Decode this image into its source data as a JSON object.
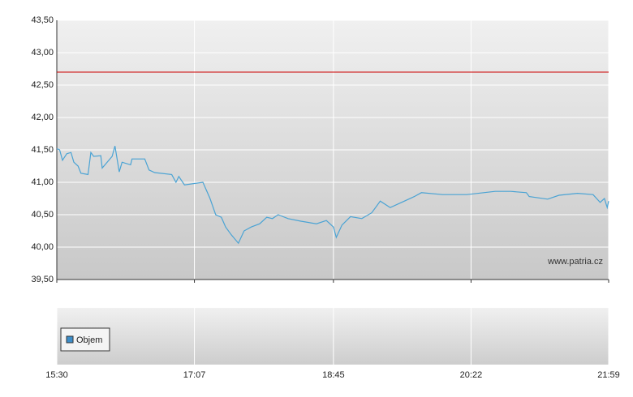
{
  "chart_data": {
    "type": "line",
    "x": [
      "15:30",
      "15:32",
      "15:34",
      "15:37",
      "15:40",
      "15:42",
      "15:45",
      "15:47",
      "15:52",
      "15:54",
      "15:56",
      "16:01",
      "16:02",
      "16:09",
      "16:11",
      "16:14",
      "16:16",
      "16:22",
      "16:23",
      "16:32",
      "16:35",
      "16:39",
      "16:51",
      "16:54",
      "16:56",
      "17:00",
      "17:13",
      "17:18",
      "17:22",
      "17:26",
      "17:29",
      "17:33",
      "17:38",
      "17:42",
      "17:47",
      "17:53",
      "17:58",
      "18:02",
      "18:06",
      "18:13",
      "18:22",
      "18:33",
      "18:40",
      "18:45",
      "18:47",
      "18:51",
      "18:57",
      "19:05",
      "19:12",
      "19:18",
      "19:25",
      "19:33",
      "19:42",
      "19:47",
      "20:02",
      "20:19",
      "20:39",
      "20:50",
      "21:01",
      "21:03",
      "21:16",
      "21:24",
      "21:37",
      "21:48",
      "21:53",
      "21:56",
      "21:58",
      "21:59"
    ],
    "series": [
      {
        "color": "#4aa3d4",
        "values": [
          41.52,
          41.5,
          41.34,
          41.44,
          41.46,
          41.31,
          41.25,
          41.14,
          41.12,
          41.46,
          41.4,
          41.41,
          41.22,
          41.4,
          41.56,
          41.16,
          41.31,
          41.27,
          41.36,
          41.36,
          41.19,
          41.15,
          41.12,
          41.0,
          41.09,
          40.96,
          41.0,
          40.75,
          40.5,
          40.46,
          40.31,
          40.19,
          40.06,
          40.25,
          40.31,
          40.36,
          40.46,
          40.44,
          40.5,
          40.44,
          40.4,
          40.36,
          40.41,
          40.31,
          40.15,
          40.34,
          40.47,
          40.44,
          40.53,
          40.71,
          40.61,
          40.69,
          40.78,
          40.84,
          40.81,
          40.81,
          40.86,
          40.86,
          40.84,
          40.78,
          40.74,
          40.8,
          40.83,
          40.81,
          40.69,
          40.75,
          40.61,
          40.71
        ]
      }
    ],
    "xlim": [
      "15:30",
      "21:59"
    ],
    "xticks": [
      "15:30",
      "17:07",
      "18:45",
      "20:22",
      "21:59"
    ],
    "ylim": [
      39.5,
      43.5
    ],
    "yticks": [
      {
        "value": 39.5,
        "label": "39,50"
      },
      {
        "value": 40,
        "label": "40,00"
      },
      {
        "value": 40.5,
        "label": "40,50"
      },
      {
        "value": 41,
        "label": "41,00"
      },
      {
        "value": 41.5,
        "label": "41,50"
      },
      {
        "value": 42,
        "label": "42,00"
      },
      {
        "value": 42.5,
        "label": "42,50"
      },
      {
        "value": 43,
        "label": "43,00"
      },
      {
        "value": 43.5,
        "label": "43,50"
      }
    ],
    "grid": true,
    "reference_line": {
      "value": 42.7,
      "color": "#cc0000"
    },
    "watermark": "www.patria.cz",
    "volume": {
      "name": "Objem",
      "color": "#3c8dc8"
    }
  }
}
